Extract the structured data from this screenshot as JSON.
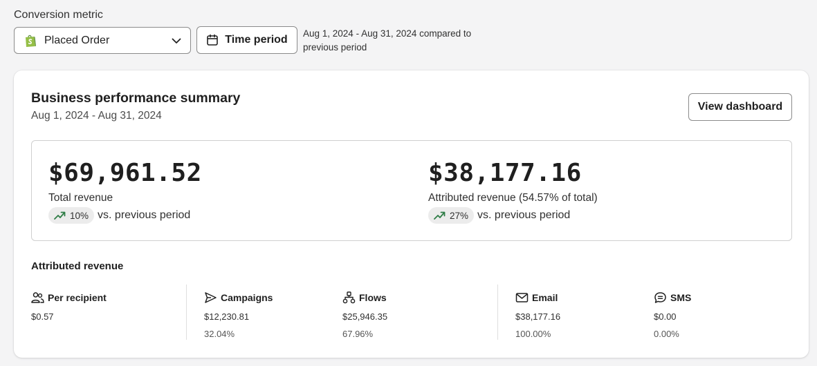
{
  "conversion_metric": {
    "label": "Conversion metric",
    "selected": "Placed Order",
    "icon": "shopify-bag-icon"
  },
  "time_period": {
    "button_label": "Time period",
    "note": "Aug 1, 2024 - Aug 31, 2024 compared to previous period"
  },
  "summary": {
    "title": "Business performance summary",
    "date_range": "Aug 1, 2024 - Aug 31, 2024",
    "view_button": "View dashboard",
    "total": {
      "value": "$69,961.52",
      "label": "Total revenue",
      "change": "10%",
      "comparison": "vs. previous period"
    },
    "attributed": {
      "value": "$38,177.16",
      "label": "Attributed revenue (54.57% of total)",
      "change": "27%",
      "comparison": "vs. previous period"
    }
  },
  "attributed_revenue": {
    "title": "Attributed revenue",
    "columns": [
      {
        "name": "Per recipient",
        "icon": "people-icon",
        "value": "$0.57",
        "percent": ""
      },
      {
        "name": "Campaigns",
        "icon": "send-icon",
        "value": "$12,230.81",
        "percent": "32.04%"
      },
      {
        "name": "Flows",
        "icon": "flow-icon",
        "value": "$25,946.35",
        "percent": "67.96%"
      },
      {
        "name": "Email",
        "icon": "mail-icon",
        "value": "$38,177.16",
        "percent": "100.00%"
      },
      {
        "name": "SMS",
        "icon": "sms-icon",
        "value": "$0.00",
        "percent": "0.00%"
      }
    ]
  },
  "colors": {
    "background": "#f4f4f5",
    "card": "#ffffff",
    "trend_up": "#2e7d46",
    "shopify_green": "#5e8e3e"
  }
}
